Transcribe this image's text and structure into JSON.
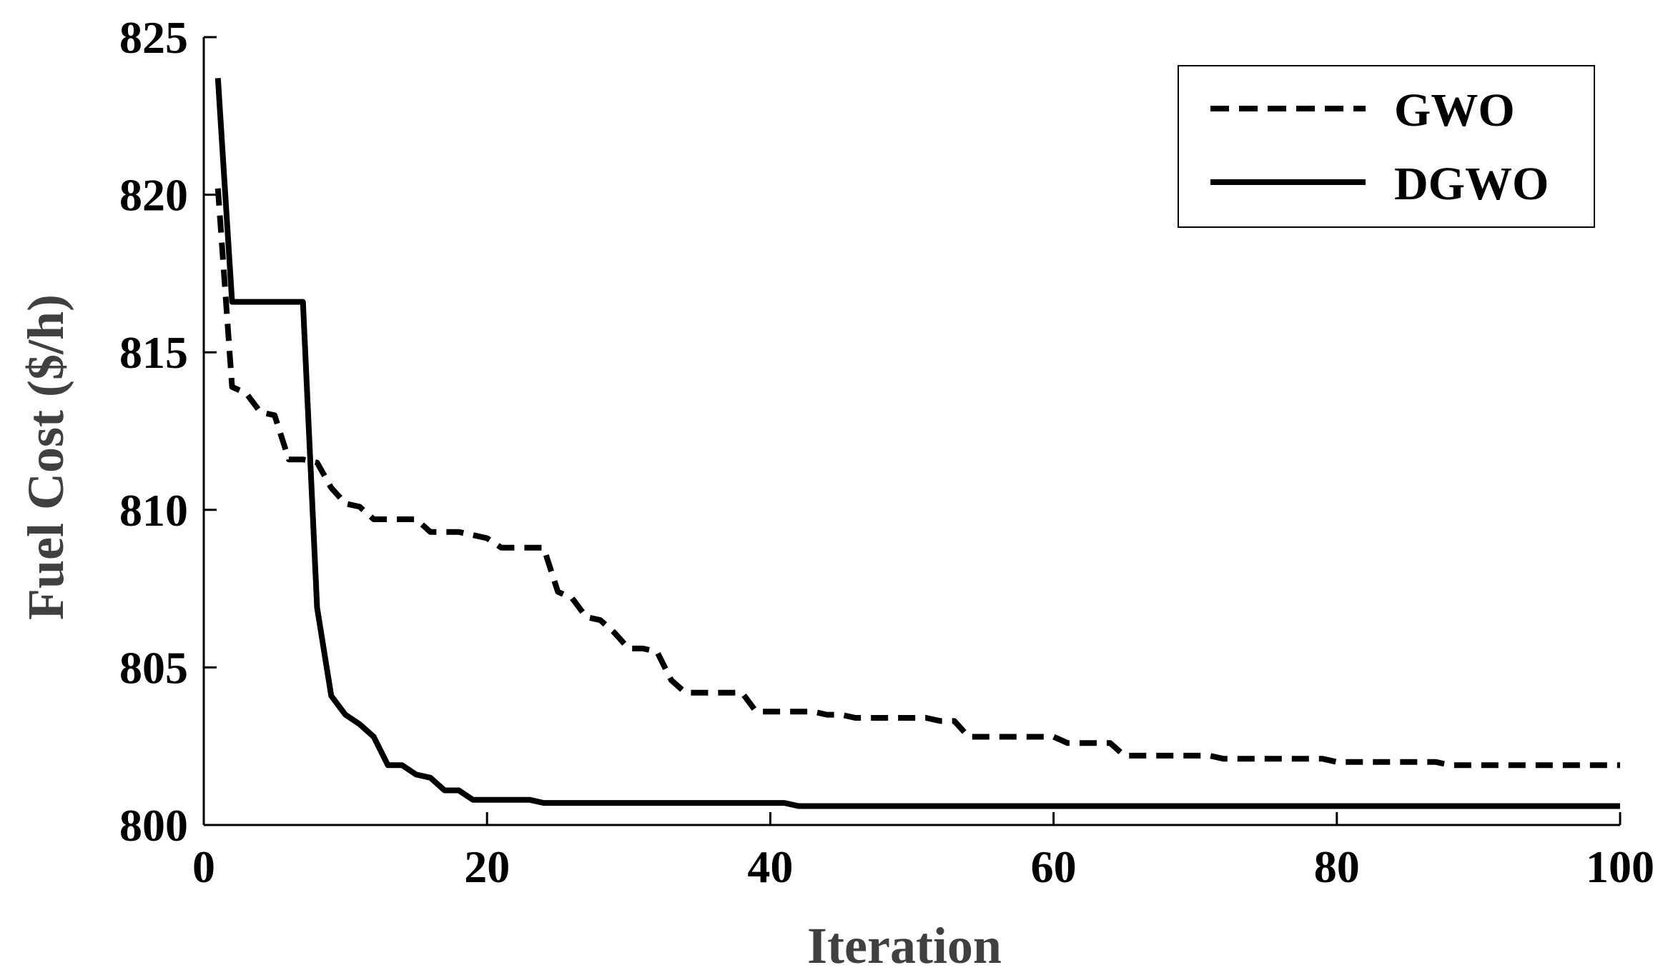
{
  "chart_data": {
    "type": "line",
    "title": "",
    "xlabel": "Iteration",
    "ylabel": "Fuel Cost ($/h)",
    "xlim": [
      0,
      100
    ],
    "ylim": [
      800,
      825
    ],
    "xticks": [
      "0",
      "20",
      "40",
      "60",
      "80",
      "100"
    ],
    "yticks": [
      "800",
      "805",
      "810",
      "815",
      "820",
      "825"
    ],
    "grid": false,
    "legend_position": "top-right",
    "series": [
      {
        "name": "GWO",
        "style": "dashed",
        "color": "#000000",
        "points": [
          [
            1,
            820.2
          ],
          [
            2,
            813.9
          ],
          [
            3,
            813.7
          ],
          [
            4,
            813.1
          ],
          [
            5,
            813.0
          ],
          [
            6,
            811.6
          ],
          [
            7,
            811.6
          ],
          [
            8,
            811.5
          ],
          [
            9,
            810.7
          ],
          [
            10,
            810.2
          ],
          [
            11,
            810.1
          ],
          [
            12,
            809.7
          ],
          [
            13,
            809.7
          ],
          [
            14,
            809.7
          ],
          [
            15,
            809.7
          ],
          [
            16,
            809.3
          ],
          [
            17,
            809.3
          ],
          [
            18,
            809.3
          ],
          [
            19,
            809.2
          ],
          [
            20,
            809.1
          ],
          [
            21,
            808.8
          ],
          [
            22,
            808.8
          ],
          [
            23,
            808.8
          ],
          [
            24,
            808.8
          ],
          [
            25,
            807.4
          ],
          [
            26,
            807.2
          ],
          [
            27,
            806.6
          ],
          [
            28,
            806.5
          ],
          [
            29,
            806.1
          ],
          [
            30,
            805.6
          ],
          [
            31,
            805.6
          ],
          [
            32,
            805.5
          ],
          [
            33,
            804.6
          ],
          [
            34,
            804.2
          ],
          [
            35,
            804.2
          ],
          [
            36,
            804.2
          ],
          [
            37,
            804.2
          ],
          [
            38,
            804.2
          ],
          [
            39,
            803.6
          ],
          [
            40,
            803.6
          ],
          [
            41,
            803.6
          ],
          [
            42,
            803.6
          ],
          [
            43,
            803.6
          ],
          [
            44,
            803.5
          ],
          [
            45,
            803.5
          ],
          [
            46,
            803.4
          ],
          [
            47,
            803.4
          ],
          [
            48,
            803.4
          ],
          [
            49,
            803.4
          ],
          [
            50,
            803.4
          ],
          [
            51,
            803.4
          ],
          [
            52,
            803.3
          ],
          [
            53,
            803.3
          ],
          [
            54,
            802.8
          ],
          [
            55,
            802.8
          ],
          [
            56,
            802.8
          ],
          [
            57,
            802.8
          ],
          [
            58,
            802.8
          ],
          [
            59,
            802.8
          ],
          [
            60,
            802.8
          ],
          [
            61,
            802.6
          ],
          [
            62,
            802.6
          ],
          [
            63,
            802.6
          ],
          [
            64,
            802.6
          ],
          [
            65,
            802.2
          ],
          [
            66,
            802.2
          ],
          [
            67,
            802.2
          ],
          [
            68,
            802.2
          ],
          [
            69,
            802.2
          ],
          [
            70,
            802.2
          ],
          [
            71,
            802.2
          ],
          [
            72,
            802.1
          ],
          [
            73,
            802.1
          ],
          [
            74,
            802.1
          ],
          [
            75,
            802.1
          ],
          [
            76,
            802.1
          ],
          [
            77,
            802.1
          ],
          [
            78,
            802.1
          ],
          [
            79,
            802.1
          ],
          [
            80,
            802.0
          ],
          [
            81,
            802.0
          ],
          [
            82,
            802.0
          ],
          [
            83,
            802.0
          ],
          [
            84,
            802.0
          ],
          [
            85,
            802.0
          ],
          [
            86,
            802.0
          ],
          [
            87,
            802.0
          ],
          [
            88,
            801.9
          ],
          [
            89,
            801.9
          ],
          [
            90,
            801.9
          ],
          [
            91,
            801.9
          ],
          [
            92,
            801.9
          ],
          [
            93,
            801.9
          ],
          [
            94,
            801.9
          ],
          [
            95,
            801.9
          ],
          [
            96,
            801.9
          ],
          [
            97,
            801.9
          ],
          [
            98,
            801.9
          ],
          [
            99,
            801.9
          ],
          [
            100,
            801.9
          ]
        ]
      },
      {
        "name": "DGWO",
        "style": "solid",
        "color": "#000000",
        "points": [
          [
            1,
            823.7
          ],
          [
            2,
            816.6
          ],
          [
            3,
            816.6
          ],
          [
            4,
            816.6
          ],
          [
            5,
            816.6
          ],
          [
            6,
            816.6
          ],
          [
            7,
            816.6
          ],
          [
            8,
            806.9
          ],
          [
            9,
            804.1
          ],
          [
            10,
            803.5
          ],
          [
            11,
            803.2
          ],
          [
            12,
            802.8
          ],
          [
            13,
            801.9
          ],
          [
            14,
            801.9
          ],
          [
            15,
            801.6
          ],
          [
            16,
            801.5
          ],
          [
            17,
            801.1
          ],
          [
            18,
            801.1
          ],
          [
            19,
            800.8
          ],
          [
            20,
            800.8
          ],
          [
            21,
            800.8
          ],
          [
            22,
            800.8
          ],
          [
            23,
            800.8
          ],
          [
            24,
            800.7
          ],
          [
            25,
            800.7
          ],
          [
            26,
            800.7
          ],
          [
            27,
            800.7
          ],
          [
            28,
            800.7
          ],
          [
            29,
            800.7
          ],
          [
            30,
            800.7
          ],
          [
            31,
            800.7
          ],
          [
            32,
            800.7
          ],
          [
            33,
            800.7
          ],
          [
            34,
            800.7
          ],
          [
            35,
            800.7
          ],
          [
            36,
            800.7
          ],
          [
            37,
            800.7
          ],
          [
            38,
            800.7
          ],
          [
            39,
            800.7
          ],
          [
            40,
            800.7
          ],
          [
            41,
            800.7
          ],
          [
            42,
            800.6
          ],
          [
            50,
            800.6
          ],
          [
            60,
            800.6
          ],
          [
            70,
            800.6
          ],
          [
            80,
            800.6
          ],
          [
            90,
            800.6
          ],
          [
            100,
            800.6
          ]
        ]
      }
    ]
  }
}
